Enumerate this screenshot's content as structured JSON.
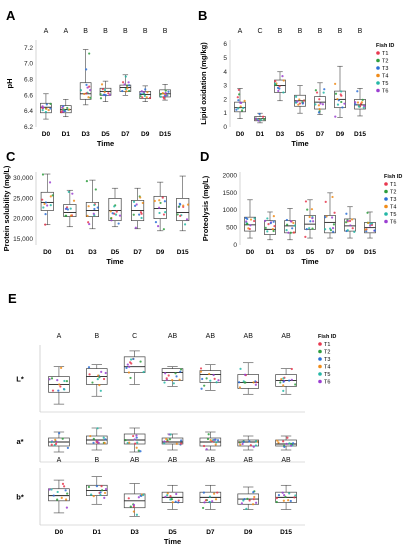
{
  "chart_data": [
    {
      "panel": "A",
      "type": "box",
      "categories": [
        "D0",
        "D1",
        "D3",
        "D5",
        "D7",
        "D9",
        "D15"
      ],
      "xlabel": "Time",
      "ylabel": "pH",
      "ylim": [
        6.2,
        7.3
      ],
      "yticks": [
        "6.2",
        "6.4",
        "6.6",
        "6.8",
        "7.0",
        "7.2"
      ],
      "group_letters": [
        "A",
        "A",
        "B",
        "B",
        "B",
        "B",
        "B"
      ],
      "boxes": [
        {
          "min": 6.3,
          "q1": 6.38,
          "median": 6.45,
          "q3": 6.5,
          "max": 6.62
        },
        {
          "min": 6.33,
          "q1": 6.38,
          "median": 6.42,
          "q3": 6.47,
          "max": 6.55
        },
        {
          "min": 6.48,
          "q1": 6.55,
          "median": 6.62,
          "q3": 6.76,
          "max": 7.18
        },
        {
          "min": 6.52,
          "q1": 6.6,
          "median": 6.65,
          "q3": 6.69,
          "max": 6.78
        },
        {
          "min": 6.6,
          "q1": 6.65,
          "median": 6.7,
          "q3": 6.73,
          "max": 6.86
        },
        {
          "min": 6.52,
          "q1": 6.56,
          "median": 6.61,
          "q3": 6.65,
          "max": 6.72
        },
        {
          "min": 6.54,
          "q1": 6.58,
          "median": 6.62,
          "q3": 6.67,
          "max": 6.74
        }
      ]
    },
    {
      "panel": "B",
      "type": "box",
      "categories": [
        "D0",
        "D1",
        "D3",
        "D5",
        "D7",
        "D9",
        "D15"
      ],
      "xlabel": "Time",
      "ylabel": "Lipid oxidation  (mg/kg)",
      "ylim": [
        0,
        6.3
      ],
      "yticks": [
        "0",
        "1",
        "2",
        "3",
        "4",
        "5",
        "6"
      ],
      "group_letters": [
        "A",
        "C",
        "B",
        "B",
        "B",
        "B",
        "B"
      ],
      "boxes": [
        {
          "min": 0.6,
          "q1": 1.1,
          "median": 1.4,
          "q3": 1.8,
          "max": 2.8
        },
        {
          "min": 0.3,
          "q1": 0.45,
          "median": 0.6,
          "q3": 0.75,
          "max": 1.0
        },
        {
          "min": 1.9,
          "q1": 2.5,
          "median": 3.0,
          "q3": 3.4,
          "max": 4.0
        },
        {
          "min": 1.0,
          "q1": 1.5,
          "median": 1.9,
          "q3": 2.3,
          "max": 3.0
        },
        {
          "min": 0.9,
          "q1": 1.3,
          "median": 1.8,
          "q3": 2.2,
          "max": 3.2
        },
        {
          "min": 0.7,
          "q1": 1.4,
          "median": 2.0,
          "q3": 2.6,
          "max": 4.4
        },
        {
          "min": 0.8,
          "q1": 1.3,
          "median": 1.6,
          "q3": 2.0,
          "max": 2.8
        }
      ],
      "legend": {
        "title": "Fish ID",
        "items": [
          "T1",
          "T2",
          "T3",
          "T4",
          "T5",
          "T6"
        ]
      }
    },
    {
      "panel": "C",
      "type": "box",
      "categories": [
        "D0",
        "D1",
        "D3",
        "D5",
        "D7",
        "D9",
        "D15"
      ],
      "xlabel": "Time",
      "ylabel": "Protein solubility (mg/L)",
      "ylim": [
        13500,
        31500
      ],
      "yticks": [
        "15,000",
        "20,000",
        "25,000",
        "30,000"
      ],
      "boxes": [
        {
          "min": 18500,
          "q1": 22000,
          "median": 24000,
          "q3": 26500,
          "max": 31000
        },
        {
          "min": 18000,
          "q1": 20500,
          "median": 21500,
          "q3": 23500,
          "max": 27000
        },
        {
          "min": 17500,
          "q1": 20500,
          "median": 22000,
          "q3": 24000,
          "max": 29500
        },
        {
          "min": 18000,
          "q1": 19500,
          "median": 22000,
          "q3": 25000,
          "max": 27500
        },
        {
          "min": 17500,
          "q1": 19500,
          "median": 22000,
          "q3": 24500,
          "max": 27500
        },
        {
          "min": 17000,
          "q1": 20000,
          "median": 22500,
          "q3": 25500,
          "max": 29000
        },
        {
          "min": 17000,
          "q1": 19500,
          "median": 21500,
          "q3": 25000,
          "max": 30500
        }
      ]
    },
    {
      "panel": "D",
      "type": "box",
      "categories": [
        "D0",
        "D1",
        "D3",
        "D5",
        "D7",
        "D9",
        "D15"
      ],
      "xlabel": "Time",
      "ylabel": "Proteolysis  (mg/L)",
      "ylim": [
        0,
        2100
      ],
      "yticks": [
        "0",
        "500",
        "1000",
        "1500",
        "2000"
      ],
      "boxes": [
        {
          "min": 200,
          "q1": 400,
          "median": 580,
          "q3": 800,
          "max": 1300
        },
        {
          "min": 150,
          "q1": 300,
          "median": 450,
          "q3": 700,
          "max": 950
        },
        {
          "min": 150,
          "q1": 350,
          "median": 550,
          "q3": 700,
          "max": 1050
        },
        {
          "min": 200,
          "q1": 450,
          "median": 600,
          "q3": 850,
          "max": 1300
        },
        {
          "min": 200,
          "q1": 350,
          "median": 650,
          "q3": 850,
          "max": 1500
        },
        {
          "min": 200,
          "q1": 400,
          "median": 550,
          "q3": 750,
          "max": 1100
        },
        {
          "min": 200,
          "q1": 350,
          "median": 500,
          "q3": 650,
          "max": 950
        }
      ],
      "legend": {
        "title": "Fish ID",
        "items": [
          "T1",
          "T2",
          "T3",
          "T4",
          "T5",
          "T6"
        ]
      }
    },
    {
      "panel": "E",
      "type": "box",
      "categories": [
        "D0",
        "D1",
        "D3",
        "D5",
        "D7",
        "D9",
        "D15"
      ],
      "xlabel": "Time",
      "subplots": [
        {
          "ylabel": "L*",
          "ylim": [
            24,
            58
          ],
          "group_letters": [
            "A",
            "B",
            "C",
            "AB",
            "AB",
            "AB",
            "AB"
          ],
          "boxes": [
            {
              "min": 28,
              "q1": 34,
              "median": 38,
              "q3": 42,
              "max": 47
            },
            {
              "min": 32,
              "q1": 38,
              "median": 42,
              "q3": 46,
              "max": 48
            },
            {
              "min": 38,
              "q1": 44,
              "median": 47,
              "q3": 52,
              "max": 55
            },
            {
              "min": 37,
              "q1": 40,
              "median": 44,
              "q3": 46,
              "max": 47
            },
            {
              "min": 35,
              "q1": 39,
              "median": 43,
              "q3": 45,
              "max": 48
            },
            {
              "min": 33,
              "q1": 36,
              "median": 39,
              "q3": 43,
              "max": 49
            },
            {
              "min": 33,
              "q1": 37,
              "median": 40,
              "q3": 43,
              "max": 46
            }
          ]
        },
        {
          "ylabel": "a*",
          "ylim": [
            10,
            31
          ],
          "boxes": [
            {
              "min": 15,
              "q1": 18,
              "median": 20,
              "q3": 22,
              "max": 25
            },
            {
              "min": 16,
              "q1": 19,
              "median": 21,
              "q3": 23,
              "max": 27
            },
            {
              "min": 15,
              "q1": 19,
              "median": 21,
              "q3": 24,
              "max": 27
            },
            {
              "min": 16,
              "q1": 19,
              "median": 20,
              "q3": 22,
              "max": 24
            },
            {
              "min": 16,
              "q1": 18,
              "median": 20,
              "q3": 22,
              "max": 25
            },
            {
              "min": 16,
              "q1": 18,
              "median": 20,
              "q3": 21,
              "max": 23
            },
            {
              "min": 16,
              "q1": 18,
              "median": 19,
              "q3": 21,
              "max": 23
            }
          ]
        },
        {
          "ylabel": "b*",
          "ylim": [
            8,
            41
          ],
          "group_letters": [
            "A",
            "B",
            "AB",
            "AB",
            "AB",
            "AB",
            "AB"
          ],
          "boxes": [
            {
              "min": 15,
              "q1": 22,
              "median": 25,
              "q3": 29,
              "max": 34
            },
            {
              "min": 20,
              "q1": 25,
              "median": 28,
              "q3": 31,
              "max": 36
            },
            {
              "min": 13,
              "q1": 18,
              "median": 22,
              "q3": 26,
              "max": 32
            },
            {
              "min": 17,
              "q1": 21,
              "median": 24,
              "q3": 27,
              "max": 31
            },
            {
              "min": 17,
              "q1": 21,
              "median": 24,
              "q3": 27,
              "max": 31
            },
            {
              "min": 17,
              "q1": 20,
              "median": 23,
              "q3": 26,
              "max": 30
            },
            {
              "min": 17,
              "q1": 21,
              "median": 24,
              "q3": 27,
              "max": 31
            }
          ]
        }
      ],
      "legend": {
        "title": "Fish ID",
        "items": [
          "T1",
          "T2",
          "T3",
          "T4",
          "T5",
          "T6"
        ]
      }
    }
  ],
  "series_colors": {
    "T1": "#e8384f",
    "T2": "#2e9e3e",
    "T3": "#2b6fd6",
    "T4": "#f08c1a",
    "T5": "#25b7a6",
    "T6": "#9b3fd1"
  },
  "point_colors": [
    "#e8384f",
    "#2e9e3e",
    "#2b6fd6",
    "#f08c1a",
    "#25b7a6",
    "#9b3fd1"
  ]
}
